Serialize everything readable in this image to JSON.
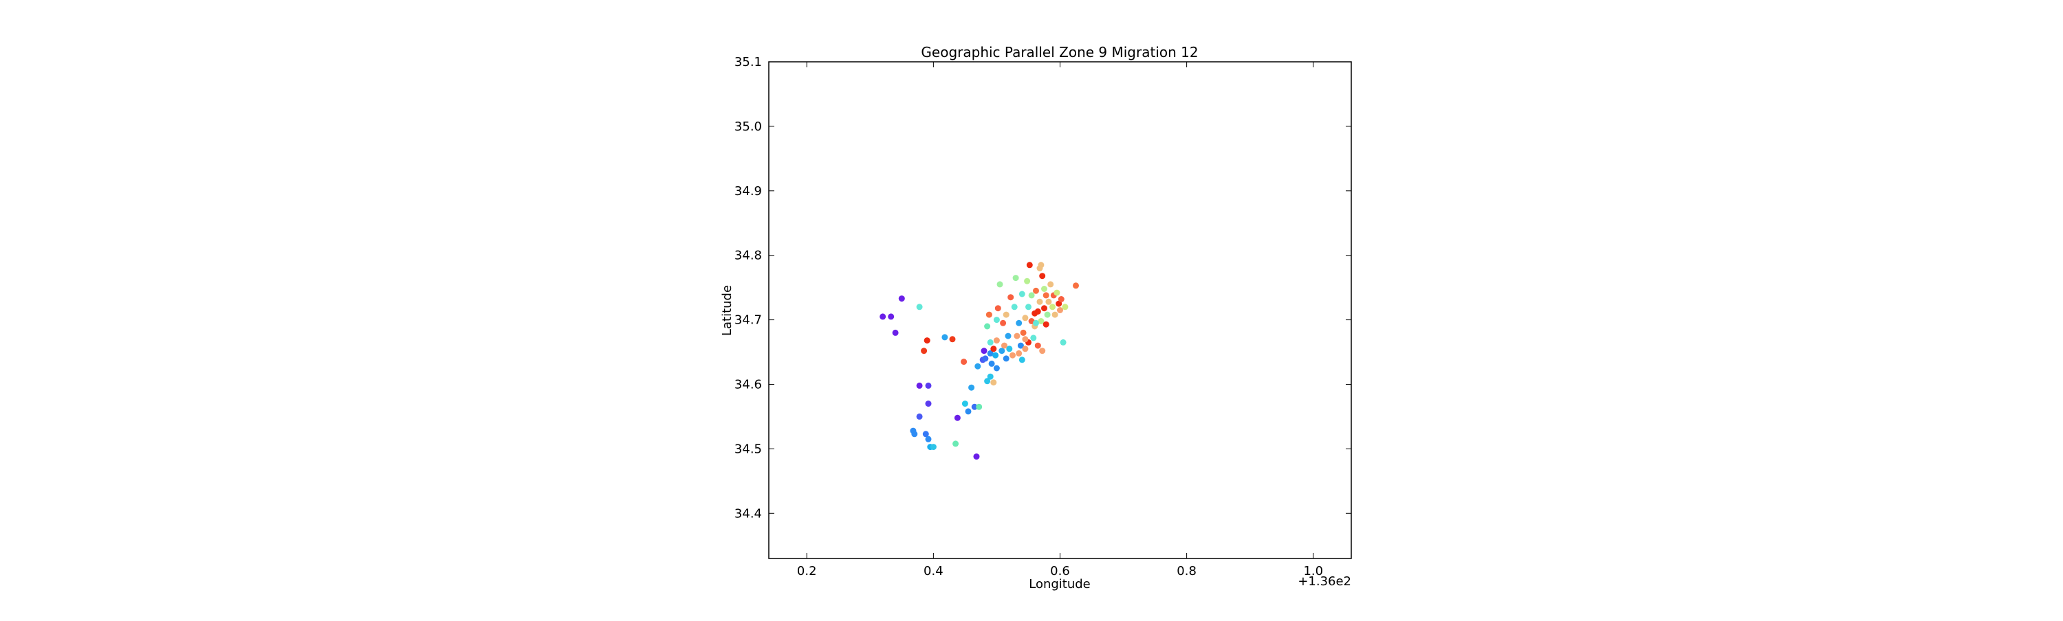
{
  "chart_data": {
    "type": "scatter",
    "title": "Geographic Parallel Zone 9 Migration 12",
    "xlabel": "Longitude",
    "ylabel": "Latitude",
    "x_offset_text": "+1.36e2",
    "xlim": [
      0.14,
      1.06
    ],
    "ylim": [
      34.33,
      35.1
    ],
    "x_ticks": [
      0.2,
      0.4,
      0.6,
      0.8,
      1.0
    ],
    "x_tick_labels": [
      "0.2",
      "0.4",
      "0.6",
      "0.8",
      "1.0"
    ],
    "y_ticks": [
      34.4,
      34.5,
      34.6,
      34.7,
      34.8,
      34.9,
      35.0,
      35.1
    ],
    "y_tick_labels": [
      "34.4",
      "34.5",
      "34.6",
      "34.7",
      "34.8",
      "34.9",
      "35.0",
      "35.1"
    ],
    "grid": false,
    "legend": "none",
    "colormap": "rainbow",
    "points": [
      {
        "x": 0.32,
        "y": 34.705,
        "color": "#6a1fe8"
      },
      {
        "x": 0.333,
        "y": 34.705,
        "color": "#6a1fe8"
      },
      {
        "x": 0.34,
        "y": 34.68,
        "color": "#6a1fe8"
      },
      {
        "x": 0.35,
        "y": 34.733,
        "color": "#6a1fe8"
      },
      {
        "x": 0.378,
        "y": 34.598,
        "color": "#6a1fe8"
      },
      {
        "x": 0.392,
        "y": 34.598,
        "color": "#5a3cf0"
      },
      {
        "x": 0.392,
        "y": 34.57,
        "color": "#5a3cf0"
      },
      {
        "x": 0.378,
        "y": 34.55,
        "color": "#4a5af4"
      },
      {
        "x": 0.368,
        "y": 34.528,
        "color": "#2e8cf4"
      },
      {
        "x": 0.37,
        "y": 34.523,
        "color": "#2e8cf4"
      },
      {
        "x": 0.388,
        "y": 34.523,
        "color": "#3478f6"
      },
      {
        "x": 0.392,
        "y": 34.515,
        "color": "#2e8cf4"
      },
      {
        "x": 0.395,
        "y": 34.503,
        "color": "#1ab0ee"
      },
      {
        "x": 0.4,
        "y": 34.503,
        "color": "#2ec4e8"
      },
      {
        "x": 0.378,
        "y": 34.72,
        "color": "#62e8d8"
      },
      {
        "x": 0.39,
        "y": 34.668,
        "color": "#ee2a10"
      },
      {
        "x": 0.385,
        "y": 34.652,
        "color": "#f03a1a"
      },
      {
        "x": 0.418,
        "y": 34.673,
        "color": "#2aa4f0"
      },
      {
        "x": 0.43,
        "y": 34.67,
        "color": "#f03a1a"
      },
      {
        "x": 0.435,
        "y": 34.508,
        "color": "#6aeab4"
      },
      {
        "x": 0.438,
        "y": 34.548,
        "color": "#6a1fe8"
      },
      {
        "x": 0.448,
        "y": 34.635,
        "color": "#f86040"
      },
      {
        "x": 0.45,
        "y": 34.57,
        "color": "#26c8ea"
      },
      {
        "x": 0.455,
        "y": 34.558,
        "color": "#2a8cf2"
      },
      {
        "x": 0.46,
        "y": 34.595,
        "color": "#2aa4f0"
      },
      {
        "x": 0.465,
        "y": 34.565,
        "color": "#3a70f4"
      },
      {
        "x": 0.468,
        "y": 34.488,
        "color": "#6a1fe8"
      },
      {
        "x": 0.47,
        "y": 34.628,
        "color": "#2aa4f0"
      },
      {
        "x": 0.472,
        "y": 34.565,
        "color": "#6aeab4"
      },
      {
        "x": 0.478,
        "y": 34.638,
        "color": "#4a5af4"
      },
      {
        "x": 0.48,
        "y": 34.652,
        "color": "#6a1fe8"
      },
      {
        "x": 0.482,
        "y": 34.64,
        "color": "#3a70f4"
      },
      {
        "x": 0.485,
        "y": 34.605,
        "color": "#2ac4ea"
      },
      {
        "x": 0.485,
        "y": 34.69,
        "color": "#6aeab4"
      },
      {
        "x": 0.488,
        "y": 34.708,
        "color": "#f87040"
      },
      {
        "x": 0.49,
        "y": 34.648,
        "color": "#2a8cf2"
      },
      {
        "x": 0.49,
        "y": 34.665,
        "color": "#62e8d8"
      },
      {
        "x": 0.492,
        "y": 34.632,
        "color": "#2a8cf2"
      },
      {
        "x": 0.495,
        "y": 34.655,
        "color": "#ee2a10"
      },
      {
        "x": 0.495,
        "y": 34.603,
        "color": "#f0c080"
      },
      {
        "x": 0.498,
        "y": 34.645,
        "color": "#1ab0ee"
      },
      {
        "x": 0.5,
        "y": 34.7,
        "color": "#62e8d8"
      },
      {
        "x": 0.5,
        "y": 34.668,
        "color": "#f8a070"
      },
      {
        "x": 0.502,
        "y": 34.718,
        "color": "#f86040"
      },
      {
        "x": 0.505,
        "y": 34.755,
        "color": "#9ef0a0"
      },
      {
        "x": 0.508,
        "y": 34.652,
        "color": "#2aa4f0"
      },
      {
        "x": 0.51,
        "y": 34.695,
        "color": "#f86040"
      },
      {
        "x": 0.512,
        "y": 34.66,
        "color": "#f8a070"
      },
      {
        "x": 0.515,
        "y": 34.64,
        "color": "#2a8cf2"
      },
      {
        "x": 0.518,
        "y": 34.675,
        "color": "#2aa4f0"
      },
      {
        "x": 0.52,
        "y": 34.655,
        "color": "#2ac4ea"
      },
      {
        "x": 0.522,
        "y": 34.735,
        "color": "#f86040"
      },
      {
        "x": 0.525,
        "y": 34.645,
        "color": "#f8a070"
      },
      {
        "x": 0.528,
        "y": 34.72,
        "color": "#62e8d8"
      },
      {
        "x": 0.53,
        "y": 34.765,
        "color": "#9ef0a0"
      },
      {
        "x": 0.532,
        "y": 34.675,
        "color": "#f8a070"
      },
      {
        "x": 0.535,
        "y": 34.695,
        "color": "#2aa4f0"
      },
      {
        "x": 0.538,
        "y": 34.66,
        "color": "#2a8cf2"
      },
      {
        "x": 0.54,
        "y": 34.74,
        "color": "#62e8d8"
      },
      {
        "x": 0.54,
        "y": 34.638,
        "color": "#2ac4ea"
      },
      {
        "x": 0.542,
        "y": 34.68,
        "color": "#f87040"
      },
      {
        "x": 0.545,
        "y": 34.703,
        "color": "#f0c080"
      },
      {
        "x": 0.545,
        "y": 34.655,
        "color": "#f8a070"
      },
      {
        "x": 0.548,
        "y": 34.76,
        "color": "#b8f090"
      },
      {
        "x": 0.55,
        "y": 34.665,
        "color": "#ee2a10"
      },
      {
        "x": 0.55,
        "y": 34.72,
        "color": "#62e8d8"
      },
      {
        "x": 0.552,
        "y": 34.785,
        "color": "#ee2a10"
      },
      {
        "x": 0.555,
        "y": 34.738,
        "color": "#9ef0a0"
      },
      {
        "x": 0.555,
        "y": 34.698,
        "color": "#f86040"
      },
      {
        "x": 0.558,
        "y": 34.672,
        "color": "#62e8d8"
      },
      {
        "x": 0.56,
        "y": 34.71,
        "color": "#ee2a10"
      },
      {
        "x": 0.56,
        "y": 34.69,
        "color": "#f0c080"
      },
      {
        "x": 0.562,
        "y": 34.745,
        "color": "#f87040"
      },
      {
        "x": 0.565,
        "y": 34.713,
        "color": "#ee2a10"
      },
      {
        "x": 0.565,
        "y": 34.66,
        "color": "#f86040"
      },
      {
        "x": 0.568,
        "y": 34.78,
        "color": "#f0c080"
      },
      {
        "x": 0.568,
        "y": 34.728,
        "color": "#f0c080"
      },
      {
        "x": 0.57,
        "y": 34.698,
        "color": "#b8f090"
      },
      {
        "x": 0.572,
        "y": 34.768,
        "color": "#ee2a10"
      },
      {
        "x": 0.572,
        "y": 34.652,
        "color": "#f8a070"
      },
      {
        "x": 0.575,
        "y": 34.718,
        "color": "#ee2a10"
      },
      {
        "x": 0.575,
        "y": 34.748,
        "color": "#b8f090"
      },
      {
        "x": 0.578,
        "y": 34.693,
        "color": "#ee2a10"
      },
      {
        "x": 0.578,
        "y": 34.738,
        "color": "#f87040"
      },
      {
        "x": 0.58,
        "y": 34.708,
        "color": "#9ef0a0"
      },
      {
        "x": 0.582,
        "y": 34.728,
        "color": "#f0c080"
      },
      {
        "x": 0.585,
        "y": 34.755,
        "color": "#f0c080"
      },
      {
        "x": 0.588,
        "y": 34.72,
        "color": "#d0ec80"
      },
      {
        "x": 0.59,
        "y": 34.738,
        "color": "#f86040"
      },
      {
        "x": 0.592,
        "y": 34.708,
        "color": "#f0c080"
      },
      {
        "x": 0.595,
        "y": 34.742,
        "color": "#d0ec80"
      },
      {
        "x": 0.598,
        "y": 34.725,
        "color": "#ee2a10"
      },
      {
        "x": 0.6,
        "y": 34.715,
        "color": "#f8a070"
      },
      {
        "x": 0.602,
        "y": 34.732,
        "color": "#f86040"
      },
      {
        "x": 0.605,
        "y": 34.665,
        "color": "#62e8d8"
      },
      {
        "x": 0.608,
        "y": 34.72,
        "color": "#d0ec80"
      },
      {
        "x": 0.625,
        "y": 34.753,
        "color": "#f87040"
      },
      {
        "x": 0.57,
        "y": 34.785,
        "color": "#f0c080"
      },
      {
        "x": 0.562,
        "y": 34.695,
        "color": "#62e8d8"
      },
      {
        "x": 0.545,
        "y": 34.67,
        "color": "#f8a070"
      },
      {
        "x": 0.535,
        "y": 34.648,
        "color": "#f8a070"
      },
      {
        "x": 0.515,
        "y": 34.708,
        "color": "#f0c080"
      },
      {
        "x": 0.5,
        "y": 34.625,
        "color": "#2a8cf2"
      },
      {
        "x": 0.49,
        "y": 34.612,
        "color": "#2ac4ea"
      }
    ]
  }
}
